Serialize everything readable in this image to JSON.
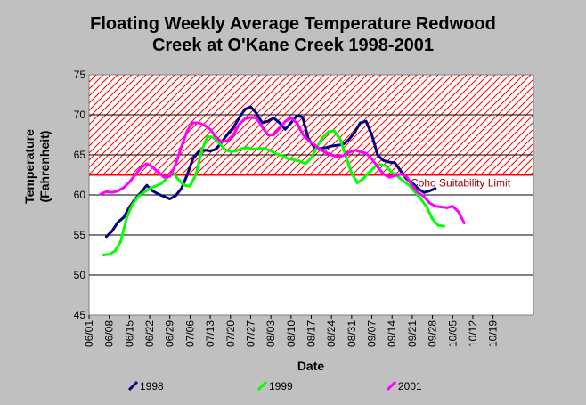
{
  "chart_data": {
    "type": "line",
    "title_lines": [
      "Floating Weekly Average Temperature Redwood",
      "Creek at O'Kane Creek 1998-2001"
    ],
    "xlabel": "Date",
    "ylabel_lines": [
      "Temperature",
      "(Fahrenheit)"
    ],
    "ylim": [
      45,
      75
    ],
    "yticks": [
      "45",
      "50",
      "55",
      "60",
      "65",
      "70",
      "75"
    ],
    "xlim": [
      "06/01",
      "11/02"
    ],
    "xticks": [
      "06/01",
      "06/08",
      "06/15",
      "06/22",
      "06/29",
      "07/06",
      "07/13",
      "07/20",
      "07/27",
      "08/03",
      "08/10",
      "08/17",
      "08/24",
      "08/31",
      "09/07",
      "09/14",
      "09/21",
      "09/28",
      "10/05",
      "10/12",
      "10/19"
    ],
    "grid": true,
    "threshold": {
      "label": "Coho Suitability Limit",
      "value": 62.5,
      "color": "#ff0000",
      "hatch_to": 75
    },
    "series": [
      {
        "name": "1998",
        "color": "#000080",
        "x": [
          "06/07",
          "06/09",
          "06/11",
          "06/13",
          "06/15",
          "06/17",
          "06/19",
          "06/21",
          "06/23",
          "06/25",
          "06/27",
          "06/29",
          "07/01",
          "07/03",
          "07/05",
          "07/07",
          "07/09",
          "07/11",
          "07/13",
          "07/15",
          "07/17",
          "07/19",
          "07/21",
          "07/23",
          "07/25",
          "07/27",
          "07/29",
          "07/31",
          "08/02",
          "08/04",
          "08/06",
          "08/08",
          "08/10",
          "08/12",
          "08/14",
          "08/16",
          "08/18",
          "08/20",
          "08/22",
          "08/24",
          "08/26",
          "08/28",
          "08/30",
          "09/01",
          "09/03",
          "09/05",
          "09/07",
          "09/09",
          "09/11",
          "09/13",
          "09/15",
          "09/17",
          "09/19",
          "09/21",
          "09/23",
          "09/25",
          "09/27",
          "09/29"
        ],
        "values": [
          54.8,
          55.5,
          56.6,
          57.2,
          58.5,
          59.5,
          60.3,
          61.2,
          60.5,
          60.1,
          59.8,
          59.5,
          59.9,
          60.8,
          62.5,
          64.5,
          65.4,
          65.6,
          65.5,
          65.7,
          66.6,
          67.6,
          68.4,
          69.6,
          70.7,
          71.0,
          70.2,
          69.0,
          69.2,
          69.6,
          69.0,
          68.2,
          69.0,
          69.9,
          69.7,
          67.0,
          66.0,
          65.8,
          65.9,
          66.1,
          66.2,
          66.3,
          66.9,
          67.8,
          69.0,
          69.2,
          67.5,
          65.0,
          64.3,
          64.1,
          64.0,
          63.0,
          62.0,
          61.5,
          60.8,
          60.3,
          60.5,
          60.8
        ]
      },
      {
        "name": "1999",
        "color": "#00ff00",
        "x": [
          "06/06",
          "06/08",
          "06/10",
          "06/12",
          "06/14",
          "06/16",
          "06/18",
          "06/20",
          "06/22",
          "06/24",
          "06/26",
          "06/28",
          "06/30",
          "07/02",
          "07/04",
          "07/06",
          "07/08",
          "07/10",
          "07/12",
          "07/14",
          "07/16",
          "07/18",
          "07/20",
          "07/22",
          "07/24",
          "07/26",
          "07/28",
          "07/30",
          "08/01",
          "08/03",
          "08/05",
          "08/07",
          "08/09",
          "08/11",
          "08/13",
          "08/15",
          "08/17",
          "08/19",
          "08/21",
          "08/23",
          "08/25",
          "08/27",
          "08/29",
          "08/31",
          "09/02",
          "09/04",
          "09/06",
          "09/08",
          "09/10",
          "09/12",
          "09/14",
          "09/16",
          "09/18",
          "09/20",
          "09/22",
          "09/24",
          "09/26",
          "09/28",
          "09/30",
          "10/02"
        ],
        "values": [
          52.5,
          52.6,
          53.0,
          54.2,
          57.1,
          58.8,
          59.8,
          60.3,
          60.8,
          61.1,
          61.4,
          62.1,
          62.8,
          61.9,
          61.2,
          61.1,
          62.5,
          65.5,
          67.3,
          67.2,
          66.5,
          65.7,
          65.4,
          65.5,
          65.8,
          65.9,
          65.7,
          65.8,
          65.8,
          65.5,
          65.1,
          64.9,
          64.5,
          64.4,
          64.2,
          63.9,
          64.6,
          66.0,
          67.2,
          67.9,
          68.0,
          67.0,
          64.8,
          62.7,
          61.5,
          62.0,
          62.8,
          63.5,
          63.8,
          63.6,
          62.8,
          62.3,
          61.7,
          61.2,
          60.3,
          59.5,
          58.5,
          57.0,
          56.2,
          56.1
        ]
      },
      {
        "name": "2001",
        "color": "#ff00ff",
        "x": [
          "06/05",
          "06/07",
          "06/09",
          "06/11",
          "06/13",
          "06/15",
          "06/17",
          "06/19",
          "06/21",
          "06/23",
          "06/25",
          "06/27",
          "06/29",
          "07/01",
          "07/03",
          "07/05",
          "07/07",
          "07/09",
          "07/11",
          "07/13",
          "07/15",
          "07/17",
          "07/19",
          "07/21",
          "07/23",
          "07/25",
          "07/27",
          "07/29",
          "07/31",
          "08/02",
          "08/04",
          "08/06",
          "08/08",
          "08/10",
          "08/12",
          "08/14",
          "08/16",
          "08/18",
          "08/20",
          "08/22",
          "08/24",
          "08/26",
          "08/28",
          "08/30",
          "09/01",
          "09/03",
          "09/05",
          "09/07",
          "09/09",
          "09/11",
          "09/13",
          "09/15",
          "09/17",
          "09/19",
          "09/21",
          "09/23",
          "09/25",
          "09/27",
          "09/29",
          "10/01",
          "10/03",
          "10/05",
          "10/07",
          "10/09"
        ],
        "values": [
          60.1,
          60.4,
          60.3,
          60.5,
          60.9,
          61.6,
          62.5,
          63.4,
          63.9,
          63.5,
          62.8,
          62.2,
          62.3,
          63.8,
          66.0,
          68.0,
          69.0,
          69.0,
          68.7,
          68.2,
          67.2,
          66.6,
          66.8,
          67.5,
          68.8,
          69.5,
          69.7,
          69.6,
          68.5,
          67.5,
          67.5,
          68.3,
          69.2,
          69.6,
          69.0,
          67.6,
          66.8,
          66.3,
          65.7,
          65.3,
          65.0,
          64.8,
          64.9,
          65.3,
          65.6,
          65.4,
          65.2,
          64.5,
          63.5,
          62.6,
          62.2,
          62.4,
          62.6,
          62.3,
          61.2,
          60.3,
          59.8,
          59.0,
          58.6,
          58.5,
          58.4,
          58.6,
          57.9,
          56.5
        ]
      }
    ]
  }
}
